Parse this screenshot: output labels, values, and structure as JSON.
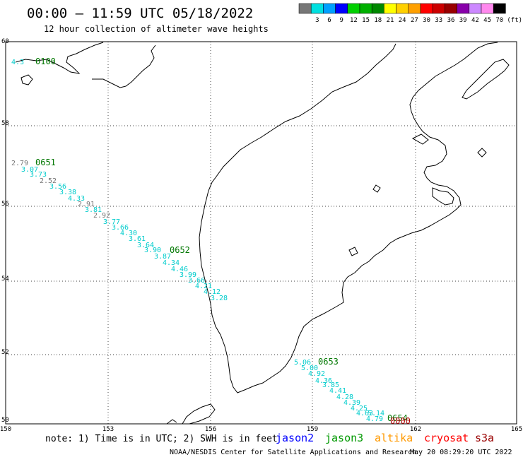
{
  "header": {
    "title": "00:00 – 11:59 UTC 05/18/2022",
    "subtitle": "12 hour collection of altimeter wave heights"
  },
  "legend": {
    "unit": "(ft)",
    "bins": [
      {
        "label": "",
        "color": "#777777"
      },
      {
        "label": "3",
        "color": "#00e0e0"
      },
      {
        "label": "6",
        "color": "#00a0ff"
      },
      {
        "label": "9",
        "color": "#0000ff"
      },
      {
        "label": "12",
        "color": "#00d000"
      },
      {
        "label": "15",
        "color": "#00b000"
      },
      {
        "label": "18",
        "color": "#008800"
      },
      {
        "label": "21",
        "color": "#ffff00"
      },
      {
        "label": "24",
        "color": "#ffd000"
      },
      {
        "label": "27",
        "color": "#ffa000"
      },
      {
        "label": "30",
        "color": "#ff0000"
      },
      {
        "label": "33",
        "color": "#cc0000"
      },
      {
        "label": "36",
        "color": "#990000"
      },
      {
        "label": "39",
        "color": "#8800aa"
      },
      {
        "label": "42",
        "color": "#cc88ff"
      },
      {
        "label": "45",
        "color": "#ff88ee"
      },
      {
        "label": "70",
        "color": "#000000"
      }
    ]
  },
  "axes": {
    "lat_labels": [
      "60",
      "58",
      "56",
      "54",
      "52",
      "50"
    ],
    "lon_labels": [
      "150",
      "153",
      "156",
      "159",
      "162",
      "165"
    ]
  },
  "tracks": [
    {
      "time": "0100",
      "time_color": "#007700",
      "points": [
        {
          "v": "4.3",
          "c": "#00cccc"
        }
      ]
    },
    {
      "time": "0651",
      "time_color": "#007700",
      "points": [
        {
          "v": "2.79",
          "c": "#777777"
        },
        {
          "v": "3.07",
          "c": "#00cccc"
        },
        {
          "v": "3.73",
          "c": "#00cccc"
        },
        {
          "v": "2.52",
          "c": "#777777"
        },
        {
          "v": "3.56",
          "c": "#00cccc"
        },
        {
          "v": "3.38",
          "c": "#00cccc"
        },
        {
          "v": "4.33",
          "c": "#00cccc"
        },
        {
          "v": "2.91",
          "c": "#777777"
        },
        {
          "v": "3.81",
          "c": "#00cccc"
        },
        {
          "v": "2.92",
          "c": "#777777"
        },
        {
          "v": "3.77",
          "c": "#00cccc"
        },
        {
          "v": "3.66",
          "c": "#00cccc"
        },
        {
          "v": "4.30",
          "c": "#00cccc"
        },
        {
          "v": "3.61",
          "c": "#00cccc"
        },
        {
          "v": "3.64",
          "c": "#00cccc"
        },
        {
          "v": "3.90",
          "c": "#00cccc"
        }
      ]
    },
    {
      "time": "0652",
      "time_color": "#007700",
      "points": [
        {
          "v": "3.87",
          "c": "#00cccc"
        },
        {
          "v": "4.34",
          "c": "#00cccc"
        },
        {
          "v": "4.46",
          "c": "#00cccc"
        },
        {
          "v": "3.99",
          "c": "#00cccc"
        },
        {
          "v": "3.66",
          "c": "#00cccc"
        },
        {
          "v": "4.21",
          "c": "#00cccc"
        },
        {
          "v": "4.12",
          "c": "#00cccc"
        },
        {
          "v": "3.28",
          "c": "#00cccc"
        }
      ]
    },
    {
      "time": "0653",
      "time_color": "#007700",
      "points": [
        {
          "v": "5.06",
          "c": "#00cccc"
        },
        {
          "v": "5.00",
          "c": "#00cccc"
        },
        {
          "v": "4.92",
          "c": "#00cccc"
        },
        {
          "v": "4.36",
          "c": "#00cccc"
        },
        {
          "v": "3.85",
          "c": "#00cccc"
        },
        {
          "v": "4.41",
          "c": "#00cccc"
        },
        {
          "v": "4.28",
          "c": "#00cccc"
        },
        {
          "v": "4.39",
          "c": "#00cccc"
        },
        {
          "v": "4.25",
          "c": "#00cccc"
        },
        {
          "v": "5.14",
          "c": "#00cccc"
        },
        {
          "v": "4.63",
          "c": "#00cccc"
        },
        {
          "v": "4.79",
          "c": "#00cccc"
        }
      ]
    },
    {
      "time": "0654",
      "time_color": "#007700",
      "points": []
    },
    {
      "time": "0000",
      "time_color": "#aa0000",
      "points": []
    }
  ],
  "footer": {
    "note": "note: 1) Time is in UTC; 2) SWH is in feet",
    "satellites": [
      {
        "name": "jason2",
        "color": "#0000ff"
      },
      {
        "name": "jason3",
        "color": "#009900"
      },
      {
        "name": "altika",
        "color": "#ff9900"
      },
      {
        "name": "cryosat",
        "color": "#ff0000"
      },
      {
        "name": "s3a",
        "color": "#990000"
      }
    ],
    "credit": "NOAA/NESDIS Center for Satellite Applications and Research",
    "timestamp": "May 20 08:29:20 UTC 2022"
  }
}
